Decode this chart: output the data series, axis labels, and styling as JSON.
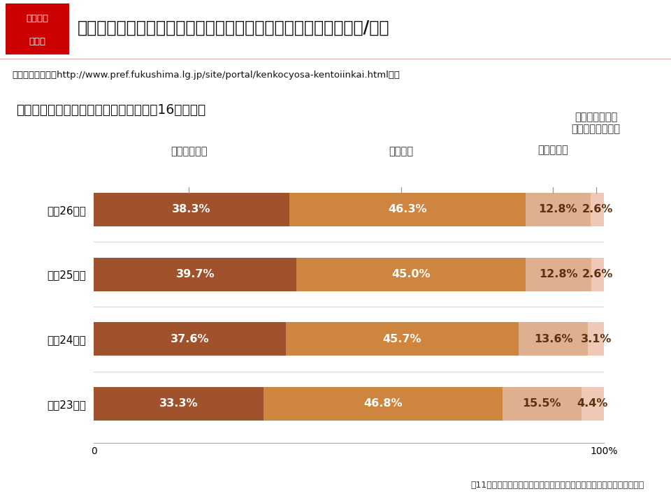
{
  "title": "こころの健康度・生活習慣に関する調査　わかってきたこと（２/４）",
  "subtitle": "最新の調査結果：http://www.pref.fukushima.lg.jp/site/portal/kenkocyosa-kentoiinkai.html　へ",
  "chart_title": "「最近１か月間の睡眠の満足度」一般（16歳以上）",
  "header_box_text1": "こころの",
  "header_box_text2": "健康度",
  "categories": [
    "平成26年度",
    "平成25年度",
    "平成24年度",
    "平成23年度"
  ],
  "data": [
    [
      38.3,
      46.3,
      12.8,
      2.6
    ],
    [
      39.7,
      45.0,
      12.8,
      2.6
    ],
    [
      37.6,
      45.7,
      13.6,
      3.1
    ],
    [
      33.3,
      46.8,
      15.5,
      4.4
    ]
  ],
  "colors": [
    "#A0522D",
    "#CD853F",
    "#DEB090",
    "#F0C8B8"
  ],
  "label_colors_in_bar": [
    "#FFFFFF",
    "#FFFFFF",
    "#5C3010",
    "#5C3010"
  ],
  "col_labels": [
    "満足している",
    "少し不満",
    "かなり不満",
    "非常に不満か、\n全く眠れなかった"
  ],
  "footer": "第11、５、９、２３回福島県「県民健康調査」検討委員会資料より作成",
  "bg_color": "#FFFFFF",
  "header_bg": "#FFE8EC",
  "subtitle_bg": "#FFF0F0",
  "bar_height": 0.52
}
